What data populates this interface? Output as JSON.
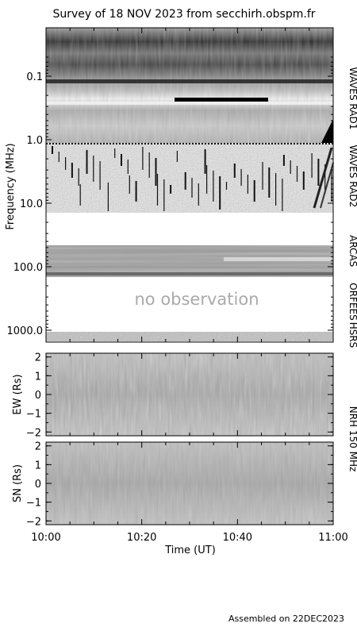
{
  "header": {
    "title": "Survey of 18 NOV 2023 from secchirh.obspm.fr"
  },
  "footer": {
    "assembled": "Assembled on 22DEC2023"
  },
  "chart_data": {
    "type": "heatmap",
    "title": "Survey of 18 NOV 2023 from secchirh.obspm.fr",
    "dynamic_spectrum": {
      "ylabel": "Frequency (MHz)",
      "yscale": "log",
      "ylim": [
        0.05,
        1400
      ],
      "yticks": [
        {
          "value": 0.1,
          "label": "0.1"
        },
        {
          "value": 1,
          "label": "1.0"
        },
        {
          "value": 10,
          "label": "10.0"
        },
        {
          "value": 100,
          "label": "100.0"
        },
        {
          "value": 1000,
          "label": "1000.0"
        }
      ],
      "instruments": [
        {
          "name": "WAVES RAD1",
          "range_mhz": [
            0.05,
            1.0
          ],
          "observed": true
        },
        {
          "name": "WAVES RAD2",
          "range_mhz": [
            1.0,
            14
          ],
          "observed": true
        },
        {
          "name": "ARCAS",
          "range_mhz": [
            40,
            80
          ],
          "observed": true
        },
        {
          "name": "ORFEES",
          "range_mhz": [
            80,
            1000
          ],
          "observed": false
        },
        {
          "name": "HSRS",
          "range_mhz": [
            1000,
            1400
          ],
          "observed": true
        }
      ],
      "annotation": "no observation"
    },
    "radioheliograph": {
      "instrument": "NRH 150 MHz",
      "panels": [
        {
          "ylabel": "EW (Rs)",
          "ylim": [
            -2.2,
            2.2
          ],
          "yticks": [
            -2,
            -1,
            0,
            1,
            2
          ]
        },
        {
          "ylabel": "SN (Rs)",
          "ylim": [
            -2.2,
            2.2
          ],
          "yticks": [
            -2,
            -1,
            0,
            1,
            2
          ]
        }
      ]
    },
    "x_axis": {
      "xlabel": "Time (UT)",
      "xlim": [
        "10:00",
        "11:00"
      ],
      "ticks": [
        "10:00",
        "10:20",
        "10:40",
        "11:00"
      ]
    }
  }
}
